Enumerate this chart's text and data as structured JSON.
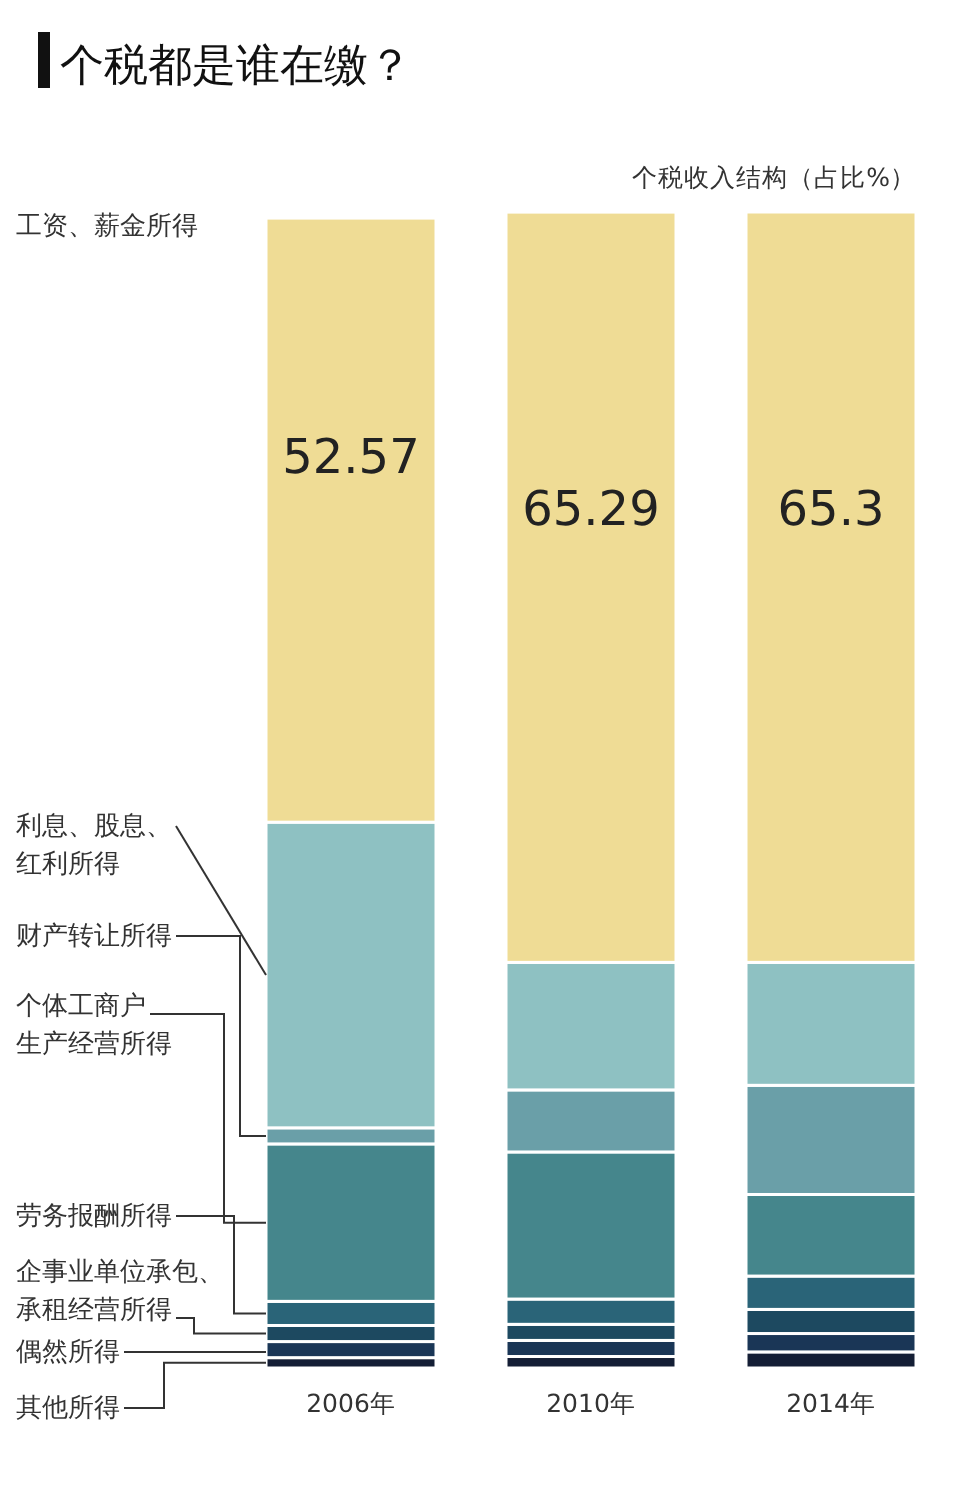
{
  "chart_data": {
    "type": "bar",
    "stacked": true,
    "title": "个税都是谁在缴？",
    "subtitle": "个税收入结构（占比%）",
    "categories": [
      "2006年",
      "2010年",
      "2014年"
    ],
    "series": [
      {
        "name": "其他所得",
        "color": "#141e35",
        "values": [
          0.9,
          1.0,
          1.4
        ]
      },
      {
        "name": "偶然所得",
        "color": "#1a3656",
        "values": [
          1.4,
          1.4,
          1.6
        ]
      },
      {
        "name": "企事业单位承包、承租经营所得",
        "color": "#1d4960",
        "values": [
          1.4,
          1.4,
          2.1
        ]
      },
      {
        "name": "劳务报酬所得",
        "color": "#2a6478",
        "values": [
          2.1,
          2.2,
          2.9
        ]
      },
      {
        "name": "个体工商户生产经营所得",
        "color": "#45868c",
        "values": [
          13.7,
          12.8,
          7.1
        ]
      },
      {
        "name": "财产转让所得",
        "color": "#6a9fa8",
        "values": [
          1.4,
          5.4,
          9.5
        ]
      },
      {
        "name": "利息、股息、红利所得",
        "color": "#8ec1c2",
        "values": [
          26.6,
          11.1,
          10.7
        ]
      },
      {
        "name": "工资、薪金所得",
        "color": "#efdc95",
        "values": [
          52.57,
          65.29,
          65.3
        ],
        "value_labels": [
          "52.57",
          "65.29",
          "65.3"
        ]
      }
    ]
  }
}
